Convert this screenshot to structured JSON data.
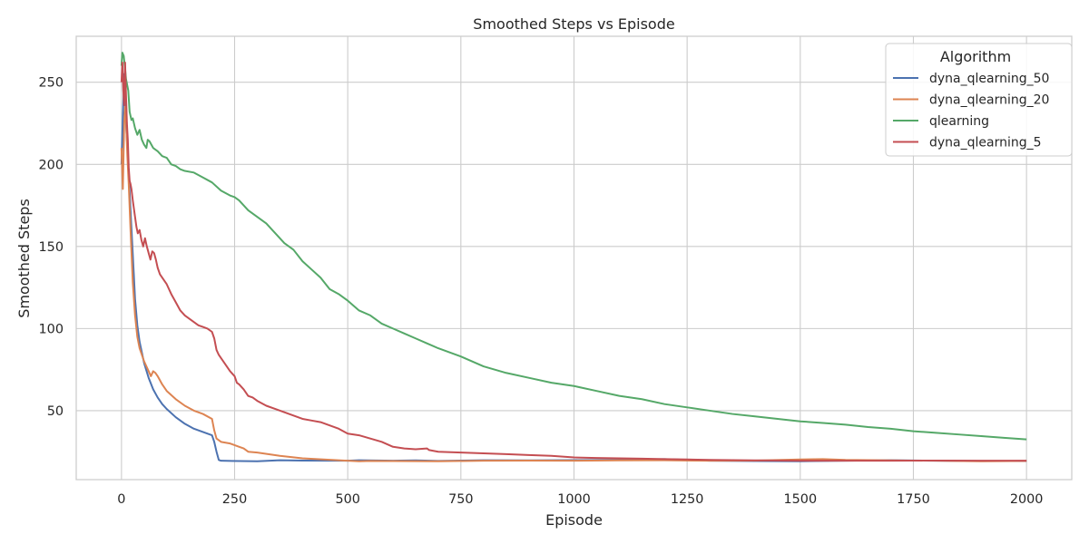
{
  "chart_data": {
    "type": "line",
    "title": "Smoothed Steps vs Episode",
    "xlabel": "Episode",
    "ylabel": "Smoothed Steps",
    "xlim": [
      -100,
      2100
    ],
    "ylim": [
      8,
      278
    ],
    "xticks": [
      0,
      250,
      500,
      750,
      1000,
      1250,
      1500,
      1750,
      2000
    ],
    "yticks": [
      50,
      100,
      150,
      200,
      250
    ],
    "grid": true,
    "legend": {
      "title": "Algorithm",
      "placement": "top-right"
    },
    "series": [
      {
        "name": "dyna_qlearning_50",
        "color": "#4c72b0",
        "points": [
          [
            0,
            200
          ],
          [
            3,
            228
          ],
          [
            6,
            255
          ],
          [
            8,
            245
          ],
          [
            10,
            225
          ],
          [
            13,
            210
          ],
          [
            16,
            195
          ],
          [
            20,
            172
          ],
          [
            25,
            145
          ],
          [
            30,
            118
          ],
          [
            35,
            102
          ],
          [
            40,
            92
          ],
          [
            50,
            79
          ],
          [
            60,
            70
          ],
          [
            70,
            63
          ],
          [
            80,
            58
          ],
          [
            90,
            54
          ],
          [
            100,
            51
          ],
          [
            120,
            46
          ],
          [
            140,
            42
          ],
          [
            160,
            39
          ],
          [
            180,
            37
          ],
          [
            200,
            35
          ],
          [
            205,
            31
          ],
          [
            210,
            25
          ],
          [
            215,
            20
          ],
          [
            220,
            19.5
          ],
          [
            300,
            19.2
          ],
          [
            350,
            19.8
          ],
          [
            400,
            19.6
          ],
          [
            500,
            19.5
          ],
          [
            525,
            19.8
          ],
          [
            600,
            19.5
          ],
          [
            650,
            19.7
          ],
          [
            700,
            19.4
          ],
          [
            750,
            19.6
          ],
          [
            800,
            19.8
          ],
          [
            900,
            19.7
          ],
          [
            1000,
            19.9
          ],
          [
            1100,
            20
          ],
          [
            1200,
            20.5
          ],
          [
            1250,
            20
          ],
          [
            1300,
            19.5
          ],
          [
            1400,
            19.3
          ],
          [
            1500,
            19.2
          ],
          [
            1600,
            19.5
          ],
          [
            1700,
            19.8
          ],
          [
            1800,
            19.5
          ],
          [
            1900,
            19.3
          ],
          [
            2000,
            19.3
          ]
        ]
      },
      {
        "name": "dyna_qlearning_20",
        "color": "#dd8452",
        "points": [
          [
            0,
            210
          ],
          [
            3,
            185
          ],
          [
            6,
            225
          ],
          [
            8,
            235
          ],
          [
            10,
            228
          ],
          [
            13,
            205
          ],
          [
            16,
            188
          ],
          [
            20,
            160
          ],
          [
            25,
            128
          ],
          [
            30,
            108
          ],
          [
            35,
            95
          ],
          [
            40,
            88
          ],
          [
            50,
            80
          ],
          [
            60,
            74
          ],
          [
            65,
            71
          ],
          [
            70,
            74
          ],
          [
            75,
            73
          ],
          [
            80,
            71
          ],
          [
            90,
            66
          ],
          [
            100,
            62
          ],
          [
            120,
            57
          ],
          [
            140,
            53
          ],
          [
            160,
            50
          ],
          [
            180,
            48
          ],
          [
            200,
            45
          ],
          [
            205,
            38
          ],
          [
            210,
            33
          ],
          [
            220,
            31
          ],
          [
            240,
            30
          ],
          [
            260,
            28
          ],
          [
            270,
            27
          ],
          [
            280,
            25
          ],
          [
            300,
            24.5
          ],
          [
            350,
            22.5
          ],
          [
            400,
            21
          ],
          [
            500,
            19.5
          ],
          [
            525,
            19.2
          ],
          [
            550,
            19.4
          ],
          [
            600,
            19.3
          ],
          [
            700,
            19.2
          ],
          [
            800,
            19.5
          ],
          [
            900,
            19.6
          ],
          [
            1000,
            19.5
          ],
          [
            1100,
            19.7
          ],
          [
            1200,
            19.8
          ],
          [
            1300,
            19.5
          ],
          [
            1400,
            19.6
          ],
          [
            1500,
            20.3
          ],
          [
            1550,
            20.5
          ],
          [
            1600,
            20.0
          ],
          [
            1700,
            19.7
          ],
          [
            1800,
            19.5
          ],
          [
            1900,
            19.2
          ],
          [
            2000,
            19.4
          ]
        ]
      },
      {
        "name": "qlearning",
        "color": "#55a868",
        "points": [
          [
            0,
            260
          ],
          [
            2,
            268
          ],
          [
            5,
            266
          ],
          [
            8,
            258
          ],
          [
            10,
            252
          ],
          [
            15,
            245
          ],
          [
            18,
            232
          ],
          [
            22,
            227
          ],
          [
            25,
            228
          ],
          [
            30,
            222
          ],
          [
            35,
            218
          ],
          [
            40,
            221
          ],
          [
            45,
            215
          ],
          [
            50,
            212
          ],
          [
            55,
            210
          ],
          [
            58,
            215
          ],
          [
            62,
            214
          ],
          [
            66,
            212
          ],
          [
            70,
            210
          ],
          [
            80,
            208
          ],
          [
            90,
            205
          ],
          [
            100,
            204
          ],
          [
            110,
            200
          ],
          [
            120,
            199
          ],
          [
            130,
            197
          ],
          [
            140,
            196
          ],
          [
            160,
            195
          ],
          [
            180,
            192
          ],
          [
            200,
            189
          ],
          [
            220,
            184
          ],
          [
            240,
            181
          ],
          [
            250,
            180
          ],
          [
            260,
            178
          ],
          [
            280,
            172
          ],
          [
            300,
            168
          ],
          [
            320,
            164
          ],
          [
            340,
            158
          ],
          [
            360,
            152
          ],
          [
            380,
            148
          ],
          [
            400,
            141
          ],
          [
            420,
            136
          ],
          [
            440,
            131
          ],
          [
            460,
            124
          ],
          [
            480,
            121
          ],
          [
            500,
            117
          ],
          [
            525,
            111
          ],
          [
            550,
            108
          ],
          [
            575,
            103
          ],
          [
            600,
            100
          ],
          [
            625,
            97
          ],
          [
            650,
            94
          ],
          [
            675,
            91
          ],
          [
            700,
            88
          ],
          [
            750,
            83
          ],
          [
            800,
            77
          ],
          [
            850,
            73
          ],
          [
            900,
            70
          ],
          [
            950,
            67
          ],
          [
            1000,
            65
          ],
          [
            1050,
            62
          ],
          [
            1100,
            59
          ],
          [
            1150,
            57
          ],
          [
            1200,
            54
          ],
          [
            1250,
            52
          ],
          [
            1300,
            50
          ],
          [
            1350,
            48
          ],
          [
            1400,
            46.5
          ],
          [
            1450,
            45
          ],
          [
            1500,
            43.5
          ],
          [
            1550,
            42.5
          ],
          [
            1600,
            41.5
          ],
          [
            1650,
            40
          ],
          [
            1700,
            39
          ],
          [
            1750,
            37.5
          ],
          [
            1800,
            36.5
          ],
          [
            1850,
            35.5
          ],
          [
            1900,
            34.5
          ],
          [
            1950,
            33.5
          ],
          [
            2000,
            32.5
          ]
        ]
      },
      {
        "name": "dyna_qlearning_5",
        "color": "#c44e52",
        "points": [
          [
            0,
            250
          ],
          [
            2,
            262
          ],
          [
            4,
            245
          ],
          [
            6,
            236
          ],
          [
            8,
            262
          ],
          [
            10,
            242
          ],
          [
            12,
            225
          ],
          [
            14,
            215
          ],
          [
            16,
            198
          ],
          [
            18,
            190
          ],
          [
            20,
            188
          ],
          [
            22,
            185
          ],
          [
            25,
            178
          ],
          [
            28,
            172
          ],
          [
            30,
            168
          ],
          [
            33,
            162
          ],
          [
            36,
            158
          ],
          [
            40,
            160
          ],
          [
            44,
            154
          ],
          [
            48,
            150
          ],
          [
            52,
            155
          ],
          [
            56,
            150
          ],
          [
            60,
            146
          ],
          [
            64,
            142
          ],
          [
            68,
            147
          ],
          [
            72,
            146
          ],
          [
            76,
            142
          ],
          [
            80,
            137
          ],
          [
            85,
            133
          ],
          [
            90,
            131
          ],
          [
            100,
            127
          ],
          [
            110,
            121
          ],
          [
            120,
            116
          ],
          [
            130,
            111
          ],
          [
            140,
            108
          ],
          [
            150,
            106
          ],
          [
            160,
            104
          ],
          [
            170,
            102
          ],
          [
            180,
            101
          ],
          [
            190,
            100
          ],
          [
            200,
            98
          ],
          [
            205,
            94
          ],
          [
            210,
            87
          ],
          [
            215,
            84
          ],
          [
            220,
            82
          ],
          [
            230,
            78
          ],
          [
            240,
            74
          ],
          [
            250,
            71
          ],
          [
            255,
            67
          ],
          [
            260,
            66
          ],
          [
            270,
            63
          ],
          [
            280,
            59
          ],
          [
            290,
            58
          ],
          [
            300,
            56
          ],
          [
            320,
            53
          ],
          [
            340,
            51
          ],
          [
            360,
            49
          ],
          [
            380,
            47
          ],
          [
            400,
            45
          ],
          [
            420,
            44
          ],
          [
            440,
            43
          ],
          [
            460,
            41
          ],
          [
            480,
            39
          ],
          [
            500,
            36
          ],
          [
            525,
            35
          ],
          [
            550,
            33
          ],
          [
            575,
            31
          ],
          [
            600,
            28
          ],
          [
            625,
            27
          ],
          [
            650,
            26.5
          ],
          [
            675,
            27
          ],
          [
            680,
            26
          ],
          [
            700,
            25
          ],
          [
            750,
            24.5
          ],
          [
            800,
            24
          ],
          [
            850,
            23.5
          ],
          [
            900,
            23
          ],
          [
            950,
            22.5
          ],
          [
            1000,
            21.5
          ],
          [
            1050,
            21.2
          ],
          [
            1100,
            21
          ],
          [
            1150,
            20.8
          ],
          [
            1200,
            20.5
          ],
          [
            1250,
            20.3
          ],
          [
            1300,
            20
          ],
          [
            1400,
            19.7
          ],
          [
            1500,
            19.5
          ],
          [
            1600,
            19.5
          ],
          [
            1700,
            19.5
          ],
          [
            1800,
            19.6
          ],
          [
            1900,
            19.5
          ],
          [
            2000,
            19.5
          ]
        ]
      }
    ]
  }
}
